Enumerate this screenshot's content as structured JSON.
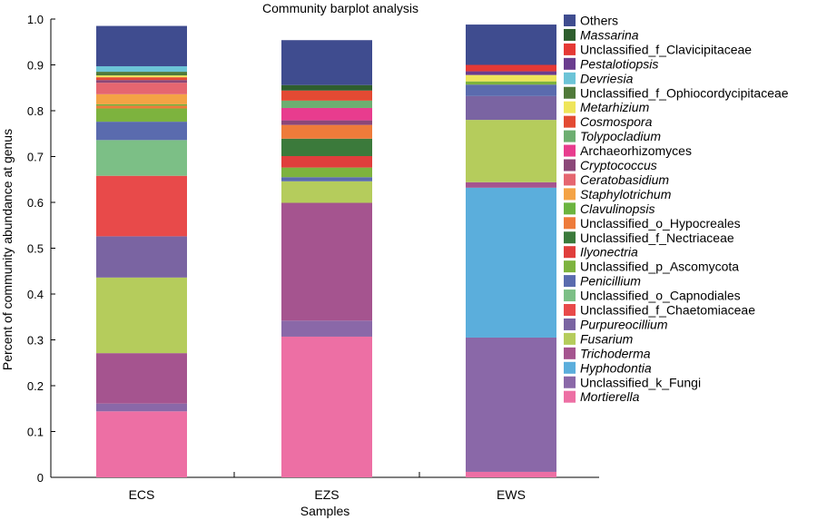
{
  "chart_data": {
    "type": "bar",
    "stacked": true,
    "title": "Community barplot analysis",
    "xlabel": "Samples",
    "ylabel": "Percent of community abundance at genus",
    "ylim": [
      0,
      1.0
    ],
    "yticks": [
      "0",
      "0.1",
      "0.2",
      "0.3",
      "0.4",
      "0.5",
      "0.6",
      "0.7",
      "0.8",
      "0.9",
      "1.0"
    ],
    "categories": [
      "ECS",
      "EZS",
      "EWS"
    ],
    "legend_position": "right",
    "series": [
      {
        "name": "Mortierella",
        "italic": true,
        "color": "#ED6FA4",
        "values": [
          0.144,
          0.307,
          0.012
        ]
      },
      {
        "name": "Unclassified_k_Fungi",
        "italic": false,
        "color": "#8A68A8",
        "values": [
          0.017,
          0.035,
          0.293
        ]
      },
      {
        "name": "Hyphodontia",
        "italic": true,
        "color": "#5BAEDC",
        "values": [
          0.0,
          0.0,
          0.327
        ]
      },
      {
        "name": "Trichoderma",
        "italic": true,
        "color": "#A5548F",
        "values": [
          0.11,
          0.257,
          0.012
        ]
      },
      {
        "name": "Fusarium",
        "italic": true,
        "color": "#B5CC5C",
        "values": [
          0.165,
          0.047,
          0.136
        ]
      },
      {
        "name": "Purpureocillium",
        "italic": true,
        "color": "#7A64A2",
        "values": [
          0.09,
          0.0,
          0.052
        ]
      },
      {
        "name": "Unclassified_f_Chaetomiaceae",
        "italic": false,
        "color": "#E84A4A",
        "values": [
          0.132,
          0.0,
          0.0
        ]
      },
      {
        "name": "Unclassified_o_Capnodiales",
        "italic": false,
        "color": "#7CBF86",
        "values": [
          0.078,
          0.0,
          0.0
        ]
      },
      {
        "name": "Penicillium",
        "italic": true,
        "color": "#5A6BAE",
        "values": [
          0.04,
          0.009,
          0.025
        ]
      },
      {
        "name": "Unclassified_p_Ascomycota",
        "italic": false,
        "color": "#7DB33E",
        "values": [
          0.029,
          0.021,
          0.007
        ]
      },
      {
        "name": "Ilyonectria",
        "italic": true,
        "color": "#E03E3C",
        "values": [
          0.0,
          0.025,
          0.0
        ]
      },
      {
        "name": "Unclassified_f_Nectriaceae",
        "italic": false,
        "color": "#3B7A3B",
        "values": [
          0.0,
          0.038,
          0.0
        ]
      },
      {
        "name": "Unclassified_o_Hypocreales",
        "italic": false,
        "color": "#EE7B3A",
        "values": [
          0.006,
          0.03,
          0.0
        ]
      },
      {
        "name": "Clavulinopsis",
        "italic": true,
        "color": "#6CB43F",
        "values": [
          0.003,
          0.0,
          0.0
        ]
      },
      {
        "name": "Staphylotrichum",
        "italic": true,
        "color": "#F4A345",
        "values": [
          0.022,
          0.0,
          0.0
        ]
      },
      {
        "name": "Ceratobasidium",
        "italic": true,
        "color": "#E56670",
        "values": [
          0.025,
          0.0,
          0.0
        ]
      },
      {
        "name": "Cryptococcus",
        "italic": true,
        "color": "#8B4778",
        "values": [
          0.006,
          0.01,
          0.0
        ]
      },
      {
        "name": "Archaeorhizomyces",
        "italic": false,
        "color": "#E83C8E",
        "values": [
          0.0,
          0.027,
          0.0
        ]
      },
      {
        "name": "Tolypocladium",
        "italic": true,
        "color": "#6DAE71",
        "values": [
          0.0,
          0.016,
          0.0
        ]
      },
      {
        "name": "Cosmospora",
        "italic": true,
        "color": "#E34A33",
        "values": [
          0.006,
          0.022,
          0.0
        ]
      },
      {
        "name": "Metarhizium",
        "italic": true,
        "color": "#EFE55A",
        "values": [
          0.004,
          0.0,
          0.014
        ]
      },
      {
        "name": "Unclassified_f_Ophiocordycipitaceae",
        "italic": false,
        "color": "#507A3A",
        "values": [
          0.008,
          0.0,
          0.0
        ]
      },
      {
        "name": "Devriesia",
        "italic": true,
        "color": "#6CC4D7",
        "values": [
          0.012,
          0.0,
          0.0
        ]
      },
      {
        "name": "Pestalotiopsis",
        "italic": true,
        "color": "#6A3D8E",
        "values": [
          0.0,
          0.0,
          0.008
        ]
      },
      {
        "name": "Unclassified_f_Clavicipitaceae",
        "italic": false,
        "color": "#E53935",
        "values": [
          0.0,
          0.0,
          0.014
        ]
      },
      {
        "name": "Massarina",
        "italic": true,
        "color": "#2E5E2E",
        "values": [
          0.0,
          0.012,
          0.0
        ]
      },
      {
        "name": "Others",
        "italic": false,
        "color": "#3F4C8F",
        "values": [
          0.088,
          0.098,
          0.088
        ]
      }
    ]
  }
}
